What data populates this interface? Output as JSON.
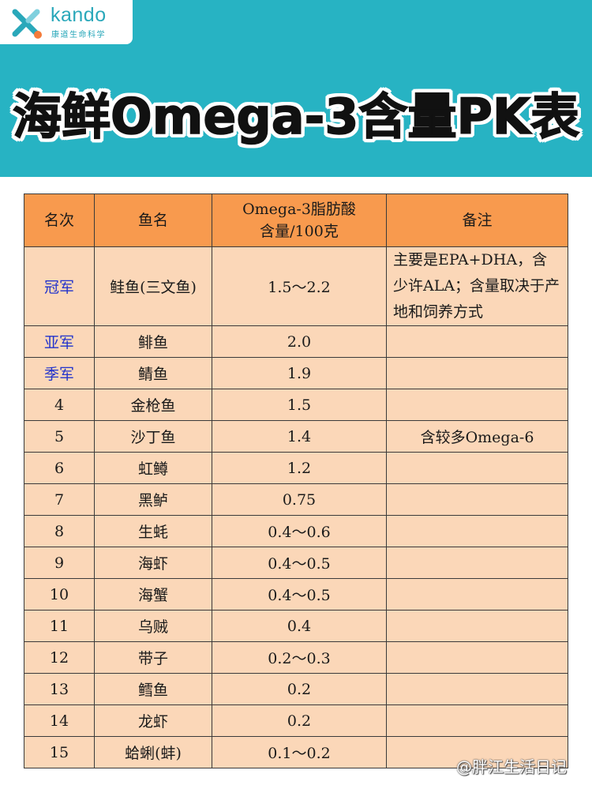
{
  "brand": {
    "name": "kando",
    "subtitle": "康道生命科学"
  },
  "title": "海鲜Omega-3含量PK表",
  "table": {
    "headers": {
      "rank": "名次",
      "fish": "鱼名",
      "content_line1": "Omega-3脂肪酸",
      "content_line2": "含量/100克",
      "notes": "备注"
    },
    "rows": [
      {
        "rank": "冠军",
        "fish": "鲑鱼(三文鱼)",
        "value": "1.5～2.2",
        "note": "主要是EPA+DHA，含少许ALA；含量取决于产地和饲养方式"
      },
      {
        "rank": "亚军",
        "fish": "鲱鱼",
        "value": "2.0",
        "note": ""
      },
      {
        "rank": "季军",
        "fish": "鲭鱼",
        "value": "1.9",
        "note": ""
      },
      {
        "rank": "4",
        "fish": "金枪鱼",
        "value": "1.5",
        "note": ""
      },
      {
        "rank": "5",
        "fish": "沙丁鱼",
        "value": "1.4",
        "note": "含较多Omega-6"
      },
      {
        "rank": "6",
        "fish": "虹鳟",
        "value": "1.2",
        "note": ""
      },
      {
        "rank": "7",
        "fish": "黑鲈",
        "value": "0.75",
        "note": ""
      },
      {
        "rank": "8",
        "fish": "生蚝",
        "value": "0.4～0.6",
        "note": ""
      },
      {
        "rank": "9",
        "fish": "海虾",
        "value": "0.4～0.5",
        "note": ""
      },
      {
        "rank": "10",
        "fish": "海蟹",
        "value": "0.4～0.5",
        "note": ""
      },
      {
        "rank": "11",
        "fish": "乌贼",
        "value": "0.4",
        "note": ""
      },
      {
        "rank": "12",
        "fish": "带子",
        "value": "0.2～0.3",
        "note": ""
      },
      {
        "rank": "13",
        "fish": "鳕鱼",
        "value": "0.2",
        "note": ""
      },
      {
        "rank": "14",
        "fish": "龙虾",
        "value": "0.2",
        "note": ""
      },
      {
        "rank": "15",
        "fish": "蛤蜊(蚌)",
        "value": "0.1～0.2",
        "note": ""
      }
    ]
  },
  "watermark": "@胖江生活日记",
  "colors": {
    "banner": "#27b3c3",
    "header_row": "#f89a4e",
    "cell": "#fbd7b8",
    "medal_rank_text": "#2233cc"
  }
}
